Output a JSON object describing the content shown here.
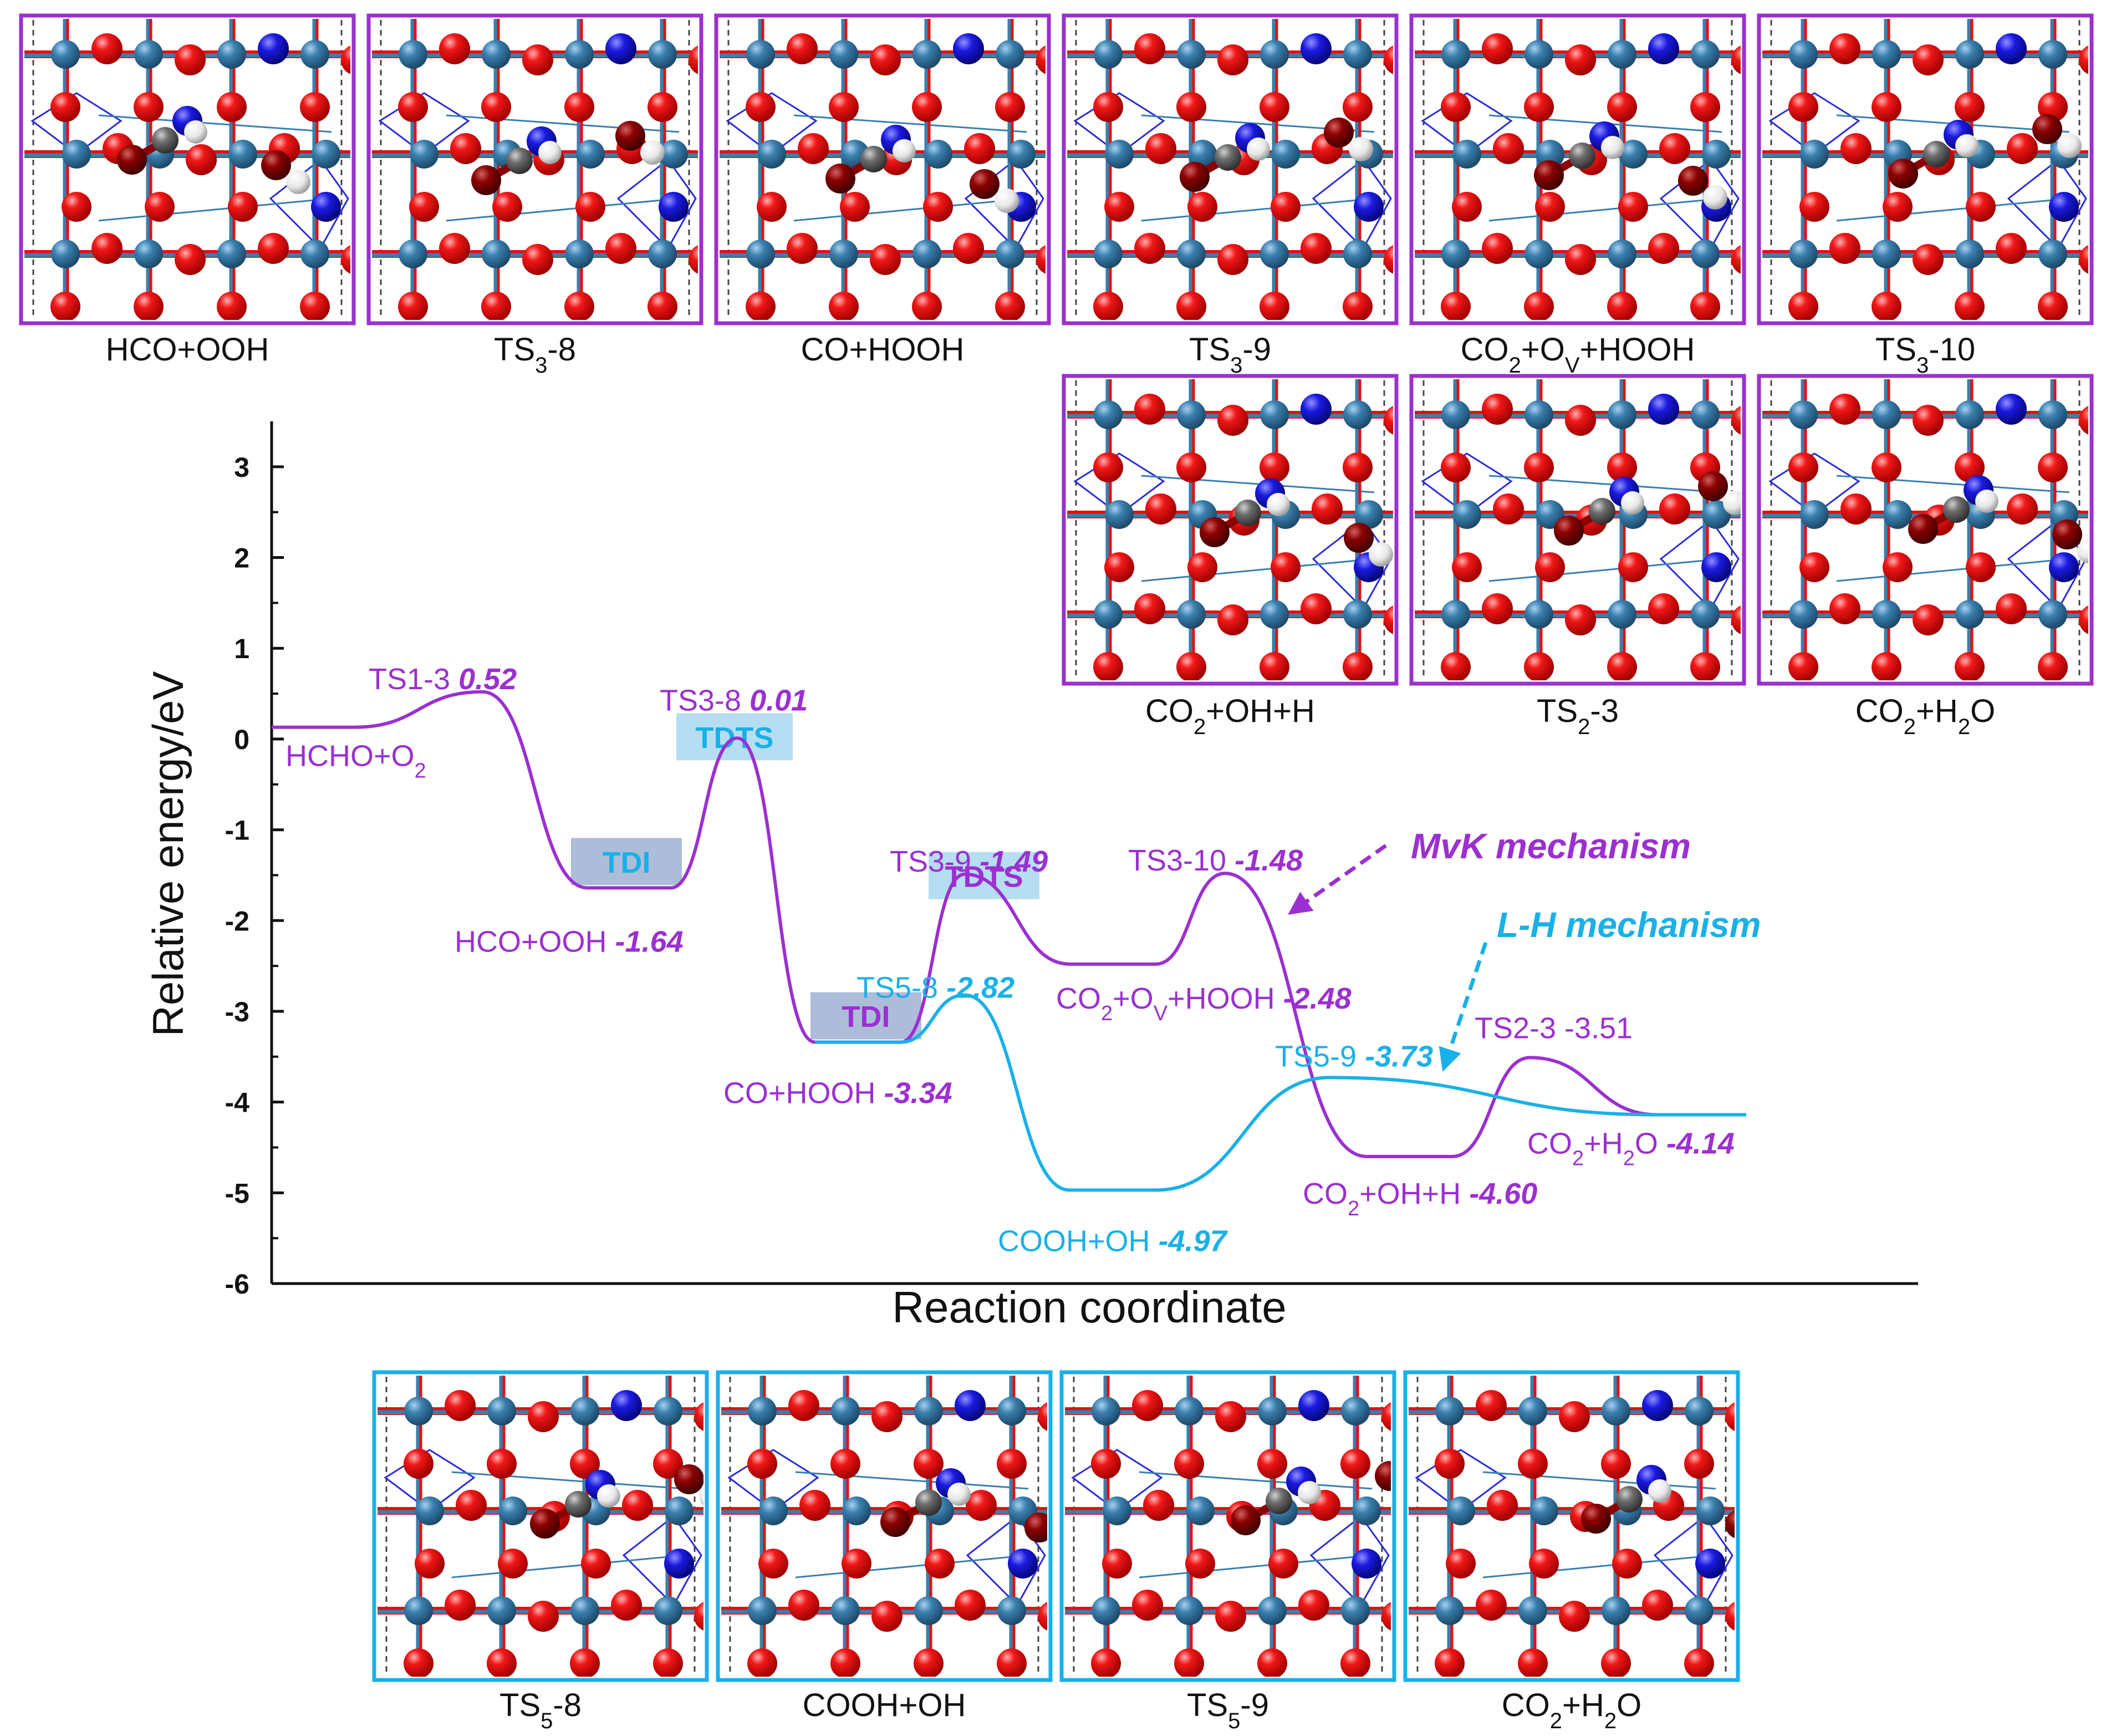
{
  "colors": {
    "mvk": "#9b30d0",
    "lh": "#1ab0e8",
    "ti_red": "#e31010",
    "ti_blue_atom": "#2f6f9a",
    "n_blue": "#1414d8",
    "dark_red": "#8b0000",
    "grey_c": "#707070",
    "h_white": "#f0f0f0",
    "tdi_box": "#9fb0d2",
    "tdts_box": "#a8d8f0"
  },
  "structure_panels": {
    "top_row": [
      {
        "label": "HCO+OOH",
        "border": "mvk"
      },
      {
        "label": "TS3-8",
        "border": "mvk"
      },
      {
        "label": "CO+HOOH",
        "border": "mvk"
      },
      {
        "label": "TS3-9",
        "border": "mvk"
      },
      {
        "label_html": "CO<tspan baseline-shift='sub' font-size='38'>2</tspan>+O<tspan baseline-shift='sub' font-size='38'>V</tspan>+HOOH",
        "label": "CO2+OV+HOOH",
        "border": "mvk"
      },
      {
        "label": "TS3-10",
        "border": "mvk"
      }
    ],
    "mid_row": [
      {
        "label": "CO2+OH+H",
        "border": "mvk"
      },
      {
        "label": "TS2-3",
        "border": "mvk"
      },
      {
        "label": "CO2+H2O",
        "border": "mvk"
      }
    ],
    "bottom_row": [
      {
        "label": "TS5-8",
        "border": "lh"
      },
      {
        "label": "COOH+OH",
        "border": "lh"
      },
      {
        "label": "TS5-9",
        "border": "lh"
      },
      {
        "label": "CO2+H2O",
        "border": "lh"
      }
    ]
  },
  "chart_data": {
    "type": "line",
    "title": "",
    "xlabel": "Reaction coordinate",
    "ylabel": "Relative energy/eV",
    "ylim": [
      -6,
      3.5
    ],
    "yticks": [
      3,
      2,
      1,
      0,
      -1,
      -2,
      -3,
      -4,
      -5,
      -6
    ],
    "series": [
      {
        "name": "MvK mechanism",
        "color": "mvk",
        "states": [
          {
            "label": "HCHO+O2",
            "energy": 0.13
          },
          {
            "label": "TS1-3",
            "energy": 0.52,
            "ts": true
          },
          {
            "label": "HCO+OOH",
            "energy": -1.64
          },
          {
            "label": "TS3-8",
            "energy": 0.01,
            "ts": true
          },
          {
            "label": "CO+HOOH",
            "energy": -3.34
          },
          {
            "label": "TS3-9",
            "energy": -1.49,
            "ts": true
          },
          {
            "label": "CO2+OV+HOOH",
            "energy": -2.48
          },
          {
            "label": "TS3-10",
            "energy": -1.48,
            "ts": true
          },
          {
            "label": "CO2+OH+H",
            "energy": -4.6
          },
          {
            "label": "TS2-3",
            "energy": -3.51,
            "ts": true
          },
          {
            "label": "CO2+H2O",
            "energy": -4.14
          }
        ]
      },
      {
        "name": "L-H mechanism",
        "color": "lh",
        "states": [
          {
            "label": "CO+HOOH",
            "energy": -3.34
          },
          {
            "label": "TS5-8",
            "energy": -2.82,
            "ts": true
          },
          {
            "label": "COOH+OH",
            "energy": -4.97
          },
          {
            "label": "TS5-9",
            "energy": -3.73,
            "ts": true
          },
          {
            "label": "CO2+H2O",
            "energy": -4.14
          }
        ]
      }
    ],
    "annotations": {
      "mvk_label": "MvK mechanism",
      "lh_label": "L-H mechanism",
      "tdi": "TDI",
      "tdts": "TDTS",
      "energy_labels": [
        {
          "name": "HCHO+O2",
          "text": "HCHO+O",
          "sub": "2",
          "value": ""
        },
        {
          "name": "TS1-3",
          "text": "TS1-3 ",
          "value": "0.52"
        },
        {
          "name": "HCO+OOH",
          "text": "HCO+OOH ",
          "value": "-1.64"
        },
        {
          "name": "TS3-8",
          "text": "TS3-8 ",
          "value": "0.01"
        },
        {
          "name": "CO+HOOH",
          "text": "CO+HOOH ",
          "value": "-3.34"
        },
        {
          "name": "TS3-9",
          "text": "TS3-9 ",
          "value": "-1.49"
        },
        {
          "name": "TS3-10",
          "text": "TS3-10 ",
          "value": "-1.48"
        },
        {
          "name": "CO2+OV+HOOH",
          "value": "-2.48"
        },
        {
          "name": "TS5-8",
          "text": "TS5-8 ",
          "value": "-2.82"
        },
        {
          "name": "TS5-9",
          "text": "TS5-9 ",
          "value": "-3.73"
        },
        {
          "name": "TS2-3",
          "text": "TS2-3 -3.51"
        },
        {
          "name": "CO2+H2O",
          "value": "-4.14"
        },
        {
          "name": "CO2+OH+H",
          "value": "-4.60"
        },
        {
          "name": "COOH+OH",
          "text": "COOH+OH ",
          "value": "-4.97"
        }
      ]
    }
  }
}
